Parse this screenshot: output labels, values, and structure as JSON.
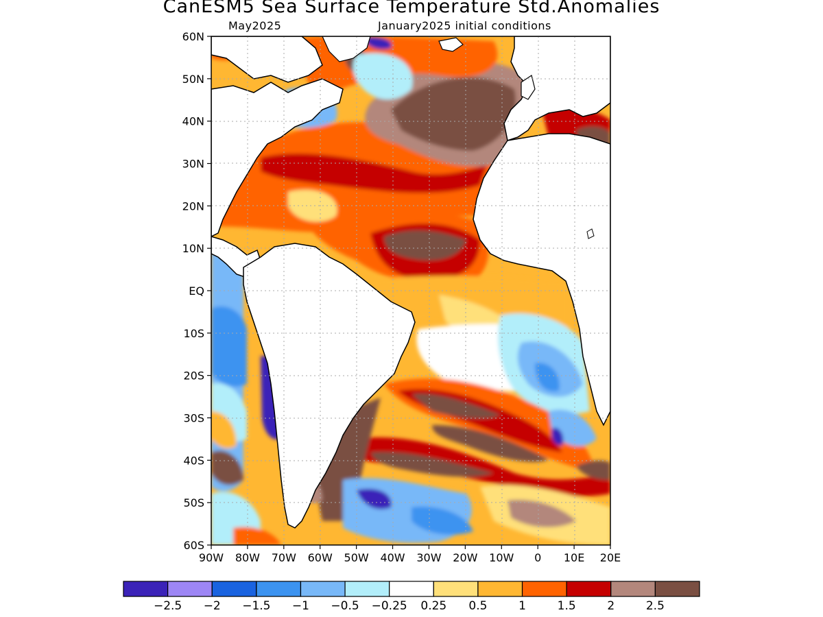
{
  "title": "CanESM5 Sea Surface Temperature Std.Anomalies",
  "subtitle_left": "May2025",
  "subtitle_right": "January2025 initial conditions",
  "axes": {
    "lat_labels": [
      "60N",
      "50N",
      "40N",
      "30N",
      "20N",
      "10N",
      "EQ",
      "10S",
      "20S",
      "30S",
      "40S",
      "50S",
      "60S"
    ],
    "lon_labels": [
      "90W",
      "80W",
      "70W",
      "60W",
      "50W",
      "40W",
      "30W",
      "20W",
      "10W",
      "0",
      "10E",
      "20E"
    ]
  },
  "colorbar": {
    "colors": [
      "#3b23b8",
      "#9d86f5",
      "#1a63e0",
      "#3c93f0",
      "#78b8f8",
      "#b2eefa",
      "#ffffff",
      "#ffe07a",
      "#ffb732",
      "#ff6300",
      "#c50000",
      "#b3877c",
      "#7a4f42"
    ],
    "tick_labels": [
      "−2.5",
      "−2",
      "−1.5",
      "−1",
      "−0.5",
      "−0.25",
      "0.25",
      "0.5",
      "1",
      "1.5",
      "2",
      "2.5"
    ]
  },
  "legend_colors": {
    "land": "#ffffff",
    "coast": "#000000",
    "grid": "#aaaaaa"
  }
}
